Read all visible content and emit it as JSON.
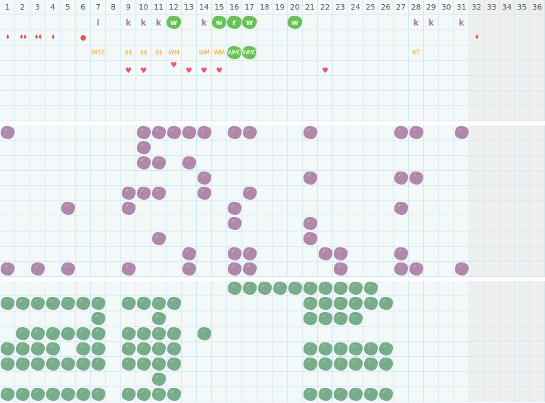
{
  "header": {
    "days": [
      "1",
      "2",
      "3",
      "4",
      "5",
      "6",
      "7",
      "8",
      "9",
      "10",
      "11",
      "12",
      "13",
      "14",
      "15",
      "16",
      "17",
      "18",
      "19",
      "20",
      "21",
      "22",
      "23",
      "24",
      "25",
      "26",
      "27",
      "28",
      "29",
      "30",
      "31",
      "32",
      "33",
      "34",
      "35",
      "36"
    ],
    "active_days": 31
  },
  "colors": {
    "purple": "#b088a9",
    "green": "#78ac8a",
    "bright_green": "#67c153",
    "orange": "#f5a623",
    "red": "#e05a55",
    "pink": "#e4567e",
    "grid_line": "#d3e9f2"
  },
  "section1": {
    "rows": [
      {
        "type": "letters",
        "marks": [
          {
            "col": 7,
            "text": "l"
          },
          {
            "col": 9,
            "text": "k"
          },
          {
            "col": 10,
            "text": "k"
          },
          {
            "col": 11,
            "text": "k"
          },
          {
            "col": 12,
            "text": "w",
            "highlight": true
          },
          {
            "col": 14,
            "text": "k"
          },
          {
            "col": 15,
            "text": "w",
            "highlight": true
          },
          {
            "col": 16,
            "text": "r",
            "highlight": true
          },
          {
            "col": 17,
            "text": "w",
            "highlight": true
          },
          {
            "col": 20,
            "text": "w",
            "highlight": true
          },
          {
            "col": 28,
            "text": "k"
          },
          {
            "col": 29,
            "text": "k"
          },
          {
            "col": 31,
            "text": "k"
          }
        ]
      },
      {
        "type": "drops",
        "marks": [
          {
            "col": 1,
            "count": 1
          },
          {
            "col": 2,
            "count": 2
          },
          {
            "col": 3,
            "count": 2
          },
          {
            "col": 4,
            "count": 1
          },
          {
            "col": 6,
            "icon": "dot"
          },
          {
            "col": 32,
            "count": 1
          }
        ]
      },
      {
        "type": "tags",
        "marks": [
          {
            "col": 7,
            "text": "WTZ"
          },
          {
            "col": 9,
            "text": "$$"
          },
          {
            "col": 10,
            "text": "$$"
          },
          {
            "col": 11,
            "text": "$$"
          },
          {
            "col": 12,
            "text": "WM"
          },
          {
            "col": 14,
            "text": "WM"
          },
          {
            "col": 15,
            "text": "WM"
          },
          {
            "col": 16,
            "text": "WMO",
            "highlight": true
          },
          {
            "col": 17,
            "text": "WMO",
            "highlight": true
          },
          {
            "col": 28,
            "text": "NT"
          }
        ]
      },
      {
        "type": "hearts",
        "marks": [
          {
            "col": 9
          },
          {
            "col": 10
          },
          {
            "col": 12,
            "raised": true
          },
          {
            "col": 13
          },
          {
            "col": 14
          },
          {
            "col": 15
          },
          {
            "col": 22
          }
        ]
      },
      {
        "type": "empty",
        "marks": []
      },
      {
        "type": "empty",
        "marks": []
      },
      {
        "type": "empty",
        "marks": []
      }
    ]
  },
  "section2": {
    "color": "purple",
    "rows": [
      [
        1,
        10,
        11,
        12,
        13,
        14,
        16,
        17,
        21,
        27,
        28,
        31
      ],
      [
        10
      ],
      [
        10,
        11,
        13
      ],
      [
        14,
        21,
        27,
        28
      ],
      [
        9,
        10,
        11,
        14,
        17
      ],
      [
        5,
        9,
        16,
        27
      ],
      [
        16,
        21
      ],
      [
        11,
        21
      ],
      [
        13,
        16,
        17,
        22,
        23,
        27
      ],
      [
        1,
        3,
        5,
        9,
        13,
        16,
        17,
        23,
        27,
        28,
        31
      ]
    ]
  },
  "section3": {
    "color": "green",
    "rows": [
      [
        16,
        17,
        18,
        19,
        20,
        21,
        22,
        23,
        24,
        25
      ],
      [
        1,
        2,
        3,
        4,
        5,
        6,
        7,
        9,
        10,
        11,
        12,
        21,
        22,
        23,
        24,
        25,
        26
      ],
      [
        7,
        11,
        21,
        22,
        23,
        24
      ],
      [
        2,
        3,
        4,
        5,
        6,
        7,
        9,
        10,
        11,
        12,
        14
      ],
      [
        1,
        2,
        3,
        4,
        6,
        7,
        9,
        10,
        11,
        12,
        21,
        22,
        23,
        24,
        25,
        26
      ],
      [
        1,
        2,
        3,
        4,
        5,
        6,
        7,
        9,
        10,
        11,
        12,
        21,
        22,
        23,
        24,
        25,
        26
      ],
      [
        11
      ],
      [
        1,
        2,
        3,
        4,
        5,
        6,
        7,
        9,
        10,
        11,
        12,
        21,
        22,
        23,
        24,
        25,
        26
      ]
    ]
  }
}
